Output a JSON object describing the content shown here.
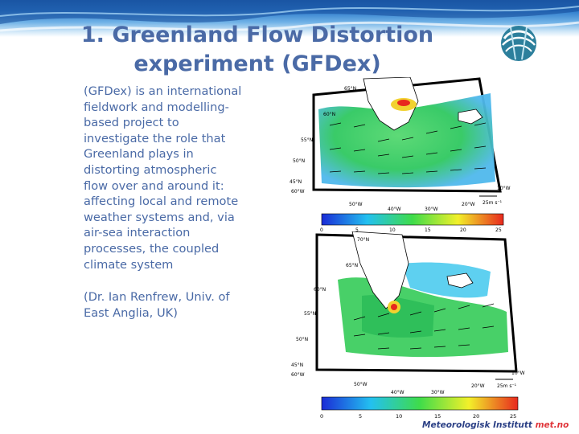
{
  "slide": {
    "title_line1": "1. Greenland Flow Distortion",
    "title_line2": "experiment (GFDex)",
    "body": "(GFDex) is an international fieldwork and modelling-based project to investigate the role that Greenland plays in distorting atmospheric flow over and around it: affecting local and remote weather systems and, via air-sea interaction processes, the coupled climate system",
    "credit": "(Dr. Ian Renfrew, Univ. of East Anglia, UK)"
  },
  "map_top": {
    "lat_labels": [
      "65°N",
      "60°N",
      "55°N",
      "50°N",
      "45°N"
    ],
    "lon_labels": [
      "60°W",
      "50°W",
      "40°W",
      "30°W",
      "20°W",
      "10°W"
    ],
    "scale_label": "25m s⁻¹",
    "colorbar_ticks": [
      "0",
      "5",
      "10",
      "15",
      "20",
      "25"
    ]
  },
  "map_bottom": {
    "lat_labels": [
      "70°N",
      "65°N",
      "60°N",
      "55°N",
      "50°N",
      "45°N"
    ],
    "lon_labels": [
      "60°W",
      "50°W",
      "40°W",
      "30°W",
      "20°W",
      "10°W"
    ],
    "scale_label": "25m s⁻¹",
    "colorbar_ticks": [
      "0",
      "5",
      "10",
      "15",
      "20",
      "25"
    ]
  },
  "footer": {
    "institute": "Meteorologisk Institutt",
    "domain": "met.no"
  },
  "colors": {
    "title": "#4a6aa6",
    "text": "#4a6aa6",
    "footer_blue": "#2a3f85",
    "footer_red": "#e0353a"
  }
}
